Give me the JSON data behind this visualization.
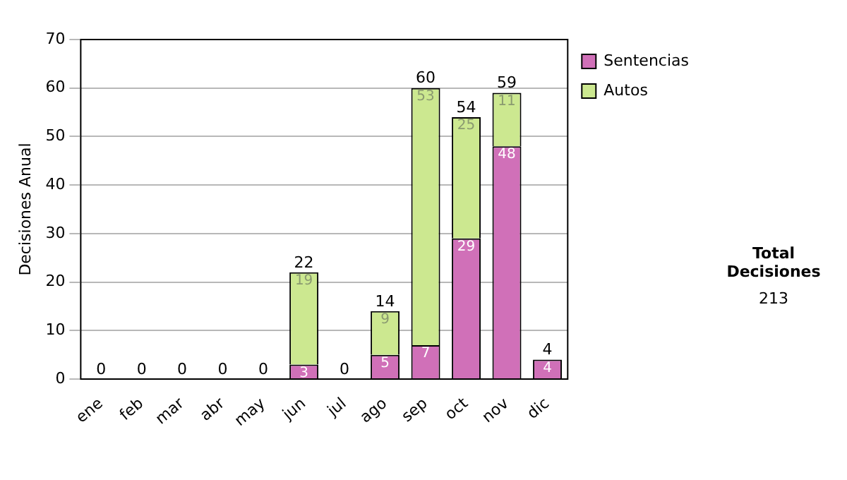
{
  "chart_data": {
    "type": "bar",
    "stacked": true,
    "ylabel": "Decisiones Anual",
    "categories": [
      "ene",
      "feb",
      "mar",
      "abr",
      "may",
      "jun",
      "jul",
      "ago",
      "sep",
      "oct",
      "nov",
      "dic"
    ],
    "series": [
      {
        "name": "Sentencias",
        "color": "#d070b8",
        "values": [
          null,
          null,
          null,
          null,
          null,
          3,
          null,
          5,
          7,
          29,
          48,
          4
        ]
      },
      {
        "name": "Autos",
        "color": "#cce890",
        "values": [
          null,
          null,
          null,
          null,
          null,
          19,
          null,
          9,
          53,
          25,
          11,
          null
        ]
      }
    ],
    "totals": [
      "0",
      "0",
      "0",
      "0",
      "0",
      "22",
      "0",
      "14",
      "60",
      "54",
      "59",
      "4"
    ],
    "data_labels": true,
    "ylim": [
      0,
      70
    ],
    "yticks": [
      0,
      10,
      20,
      30,
      40,
      50,
      60,
      70
    ],
    "grid": "y",
    "legend": "right",
    "annotations": [
      "Total Decisiones",
      "213"
    ]
  }
}
